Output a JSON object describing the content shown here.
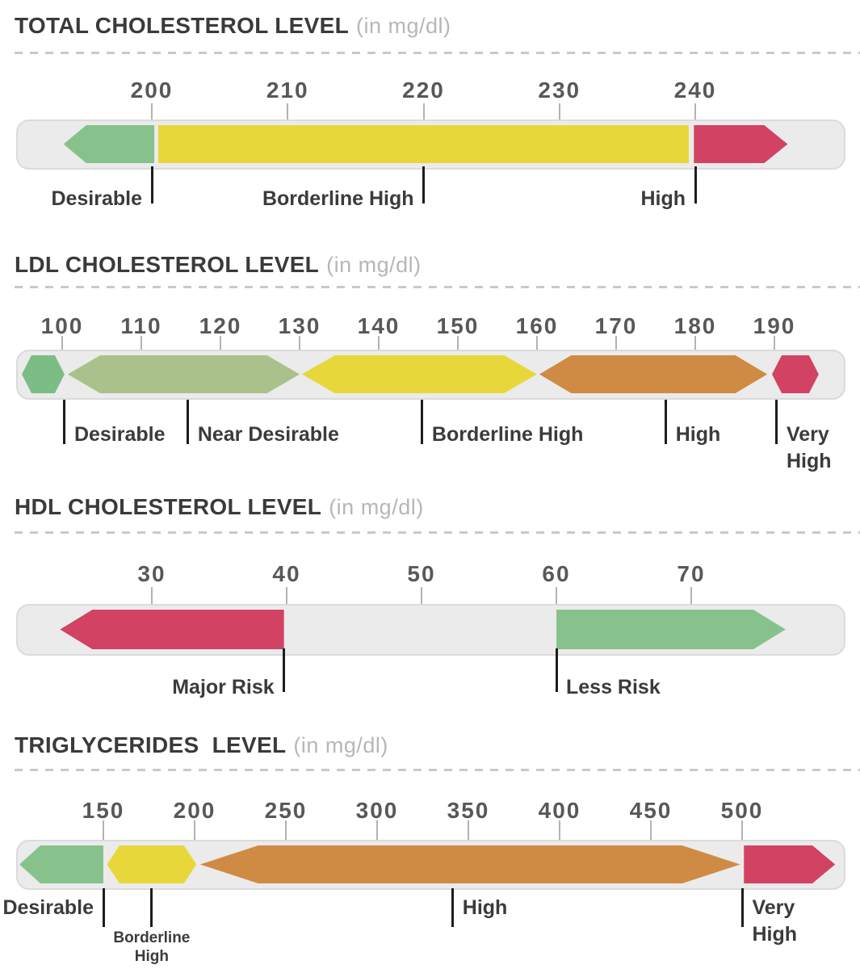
{
  "chart_data": {
    "type": "bar",
    "subtype": "range-scale-infographic",
    "unit": "mg/dl",
    "colors": {
      "green": "#87c28c",
      "ldl_green": "#7cbd86",
      "olive": "#abc18b",
      "yellow": "#e8d73a",
      "orange": "#cf8b43",
      "red": "#d14263",
      "track": "#ebebeb"
    },
    "sections": [
      {
        "id": "total-cholesterol",
        "title": "TOTAL CHOLESTEROL LEVEL",
        "unit_label": "(in mg/dl)",
        "axis_ticks": [
          200,
          210,
          220,
          230,
          240
        ],
        "zones": [
          {
            "name": "Desirable",
            "shape": "arrow-left",
            "color": "#87c28c",
            "from": 193.5,
            "to": 200.2
          },
          {
            "name": "Borderline High",
            "shape": "bar",
            "color": "#e8d73a",
            "from": 200.5,
            "to": 239.5
          },
          {
            "name": "High",
            "shape": "arrow-right",
            "color": "#d14263",
            "from": 239.9,
            "to": 246.8
          }
        ],
        "labels": [
          {
            "text": "Desirable",
            "value": 200,
            "side": "before"
          },
          {
            "text": "Borderline High",
            "value": 220,
            "side": "before"
          },
          {
            "text": "High",
            "value": 240,
            "side": "before"
          }
        ]
      },
      {
        "id": "ldl-cholesterol",
        "title": "LDL CHOLESTEROL LEVEL",
        "unit_label": "(in mg/dl)",
        "axis_ticks": [
          100,
          110,
          120,
          130,
          140,
          150,
          160,
          170,
          180,
          190
        ],
        "zones": [
          {
            "name": "Desirable",
            "shape": "hexagon",
            "color": "#7cbd86",
            "from": 94.9,
            "to": 100.3
          },
          {
            "name": "Near Desirable",
            "shape": "hexagon",
            "color": "#abc18b",
            "from": 100.7,
            "to": 130.0
          },
          {
            "name": "Borderline High",
            "shape": "hexagon",
            "color": "#e8d73a",
            "from": 130.3,
            "to": 160.0
          },
          {
            "name": "High",
            "shape": "hexagon",
            "color": "#cf8b43",
            "from": 160.3,
            "to": 189.1
          },
          {
            "name": "Very High",
            "shape": "hexagon",
            "color": "#d14263",
            "from": 189.7,
            "to": 195.6
          }
        ],
        "labels": [
          {
            "text": "Desirable",
            "value": 100.3,
            "side": "after"
          },
          {
            "text": "Near Desirable",
            "value": 115.9,
            "side": "after"
          },
          {
            "text": "Borderline High",
            "value": 145.5,
            "side": "after"
          },
          {
            "text": "High",
            "value": 176.3,
            "side": "after"
          },
          {
            "text": "Very\nHigh",
            "value": 190.3,
            "side": "after"
          }
        ]
      },
      {
        "id": "hdl-cholesterol",
        "title": "HDL CHOLESTEROL LEVEL",
        "unit_label": "(in mg/dl)",
        "axis_ticks": [
          30,
          40,
          50,
          60,
          70
        ],
        "zones": [
          {
            "name": "Major Risk",
            "shape": "arrow-left",
            "color": "#d14263",
            "from": 23.2,
            "to": 39.8
          },
          {
            "name": "Less Risk",
            "shape": "arrow-right",
            "color": "#87c28c",
            "from": 60.0,
            "to": 77.0
          }
        ],
        "labels": [
          {
            "text": "Major Risk",
            "value": 39.8,
            "side": "before"
          },
          {
            "text": "Less Risk",
            "value": 60.0,
            "side": "after"
          }
        ]
      },
      {
        "id": "triglycerides",
        "title": "TRIGLYCERIDES  LEVEL",
        "unit_label": "(in mg/dl)",
        "axis_ticks": [
          150,
          200,
          250,
          300,
          350,
          400,
          450,
          500
        ],
        "zones": [
          {
            "name": "Desirable",
            "shape": "arrow-left",
            "color": "#87c28c",
            "from": 104,
            "to": 150
          },
          {
            "name": "Borderline High",
            "shape": "hexagon",
            "color": "#e8d73a",
            "from": 152,
            "to": 201
          },
          {
            "name": "High",
            "shape": "hexagon",
            "color": "#cf8b43",
            "from": 203,
            "to": 499
          },
          {
            "name": "Very High",
            "shape": "arrow-right",
            "color": "#d14263",
            "from": 501,
            "to": 551
          }
        ],
        "labels": [
          {
            "text": "Desirable",
            "value": 150,
            "side": "before"
          },
          {
            "text": "Borderline\nHigh",
            "value": 176.5,
            "side": "center",
            "small": true
          },
          {
            "text": "High",
            "value": 341.5,
            "side": "after"
          },
          {
            "text": "Very\nHigh",
            "value": 500.2,
            "side": "after"
          }
        ]
      }
    ]
  }
}
